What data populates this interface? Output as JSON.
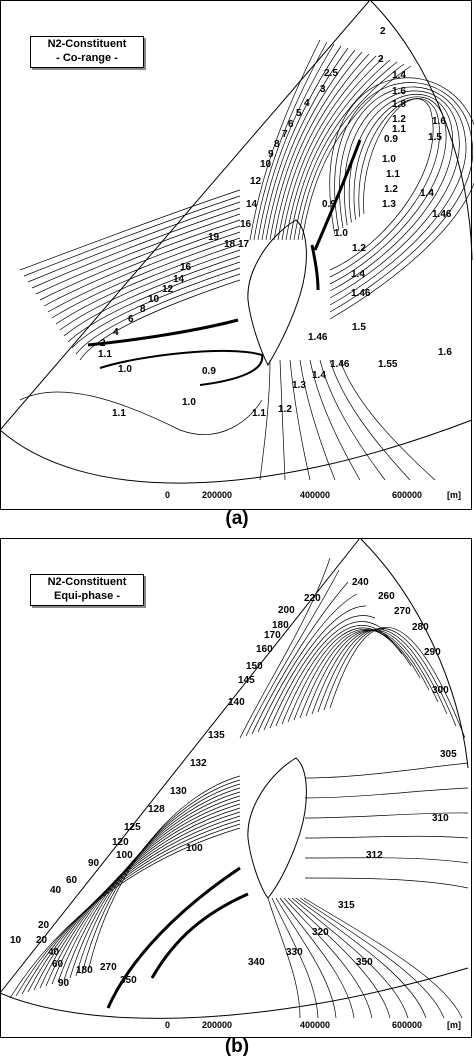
{
  "panel_a": {
    "legend_title": "N2-Constituent",
    "legend_subtitle": "- Co-range -",
    "caption": "(a)",
    "x_ticks": [
      "0",
      "200000",
      "400000",
      "600000",
      "[m]"
    ],
    "contour_labels": [
      "2",
      "2.5",
      "3",
      "4",
      "5",
      "6",
      "7",
      "8",
      "9",
      "10",
      "12",
      "14",
      "16",
      "17",
      "18",
      "19",
      "16",
      "14",
      "12",
      "10",
      "8",
      "6",
      "4",
      "2",
      "1.1",
      "1.0",
      "0.9",
      "1.0",
      "1.1",
      "1.1",
      "1.2",
      "1.3",
      "1.4",
      "1.46",
      "1.46",
      "1.5",
      "1.55",
      "1.6",
      "1.46",
      "1.4",
      "1.2",
      "1.0",
      "0.9",
      "1.3",
      "1.2",
      "1.1",
      "1.0",
      "0.9",
      "1.4",
      "1.46",
      "1.5",
      "1.6",
      "1.8",
      "1.6",
      "1.4",
      "1.2",
      "1.1",
      "2"
    ]
  },
  "panel_b": {
    "legend_title": "N2-Constituent",
    "legend_subtitle": "Equi-phase -",
    "caption": "(b)",
    "x_ticks": [
      "0",
      "200000",
      "400000",
      "600000",
      "[m]"
    ],
    "contour_labels": [
      "240",
      "260",
      "270",
      "280",
      "290",
      "300",
      "305",
      "310",
      "312",
      "315",
      "320",
      "330",
      "340",
      "350",
      "350",
      "270",
      "180",
      "90",
      "60",
      "40",
      "20",
      "10",
      "20",
      "40",
      "60",
      "90",
      "100",
      "100",
      "120",
      "125",
      "128",
      "130",
      "132",
      "135",
      "140",
      "145",
      "150",
      "160",
      "170",
      "180",
      "200",
      "220"
    ]
  }
}
